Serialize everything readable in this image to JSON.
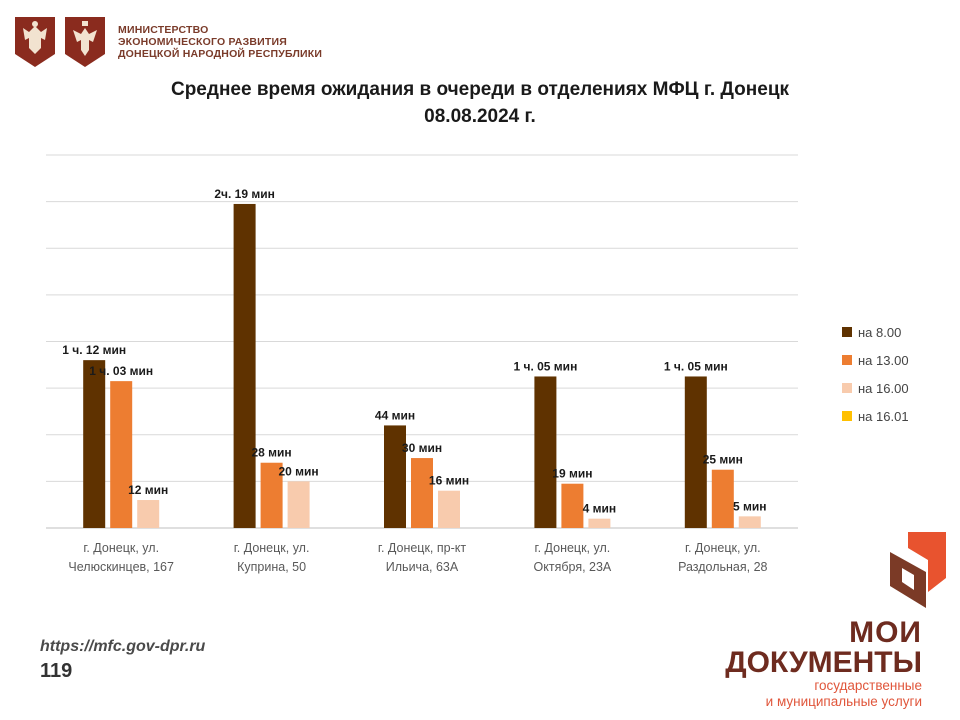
{
  "header": {
    "ministry_line1": "МИНИСТЕРСТВО",
    "ministry_line2": "ЭКОНОМИЧЕСКОГО РАЗВИТИЯ",
    "ministry_line3": "ДОНЕЦКОЙ НАРОДНОЙ РЕСПУБЛИКИ"
  },
  "footer": {
    "url": "https://mfc.gov-dpr.ru",
    "page": "119"
  },
  "brand": {
    "line1": "МОИ",
    "line2": "ДОКУМЕНТЫ",
    "sub1": "государственные",
    "sub2": "и муниципальные услуги"
  },
  "chart_data": {
    "type": "bar",
    "title_line1": "Среднее время ожидания в очереди в отделениях МФЦ г. Донецк",
    "title_line2": "08.08.2024 г.",
    "xlabel": "",
    "ylabel": "",
    "ylim": [
      0,
      160
    ],
    "grid": true,
    "legend_position": "right",
    "categories": [
      [
        "г. Донецк, ул.",
        "Челюскинцев, 167"
      ],
      [
        "г. Донецк, ул.",
        "Куприна, 50"
      ],
      [
        "г. Донецк, пр-кт",
        "Ильича, 63А"
      ],
      [
        "г. Донецк, ул.",
        "Октября, 23А"
      ],
      [
        "г. Донецк, ул.",
        "Раздольная, 28"
      ]
    ],
    "series": [
      {
        "name": "на 8.00",
        "color": "#5f3200",
        "values": [
          72,
          139,
          44,
          65,
          65
        ],
        "labels": [
          "1 ч. 12 мин",
          "2ч. 19 мин",
          "44 мин",
          "1 ч. 05 мин",
          "1 ч. 05 мин"
        ]
      },
      {
        "name": "на 13.00",
        "color": "#ed7d31",
        "values": [
          63,
          28,
          30,
          19,
          25
        ],
        "labels": [
          "1 ч. 03 мин",
          "28 мин",
          "30 мин",
          "19 мин",
          "25 мин"
        ]
      },
      {
        "name": "на 16.00",
        "color": "#f8cbad",
        "values": [
          12,
          20,
          16,
          4,
          5
        ],
        "labels": [
          "12 мин",
          "20 мин",
          "16 мин",
          "4 мин",
          "5 мин"
        ]
      },
      {
        "name": "на 16.01",
        "color": "#ffc000",
        "values": [
          null,
          null,
          null,
          null,
          null
        ],
        "labels": [
          "",
          "",
          "",
          "",
          ""
        ]
      }
    ]
  }
}
